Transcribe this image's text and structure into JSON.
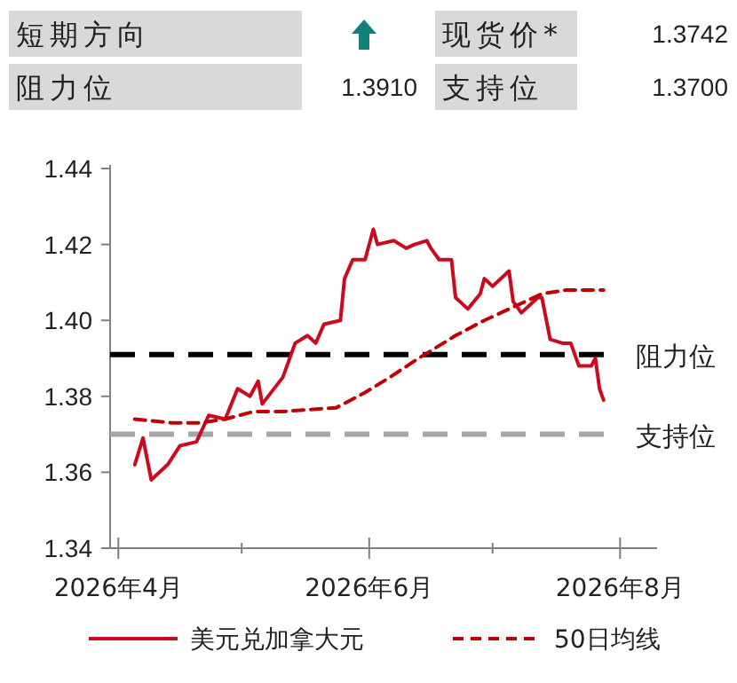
{
  "chart_data": [
    {
      "type": "other",
      "annotations": [
        "短期方向",
        "现货价*",
        "1.3742",
        "阻力位",
        "1.3910",
        "支持位",
        "1.3700"
      ]
    },
    {
      "type": "line",
      "legend": "bottom",
      "grid": false,
      "marker": "none",
      "xlim": [
        "2026-03-30",
        "2026-08-10"
      ],
      "ylim": [
        1.34,
        1.44
      ],
      "xticks": [
        {
          "value": "2026-04",
          "label": "2026年4月"
        },
        {
          "value": "2026-05",
          "label": null
        },
        {
          "value": "2026-06",
          "label": "2026年6月"
        },
        {
          "value": "2026-07",
          "label": null
        },
        {
          "value": "2026-08",
          "label": "2026年8月"
        }
      ],
      "yticks": [
        1.34,
        1.36,
        1.38,
        {
          "value": 1.4,
          "label": "1.40"
        },
        1.42,
        1.44
      ],
      "ref_lines": [
        {
          "axis": "y",
          "value": 1.391,
          "label": "阻力位",
          "color": "#000000",
          "line_style": "dashed"
        },
        {
          "axis": "y",
          "value": 1.37,
          "label": "支持位",
          "color": "#a6a6a6",
          "line_style": "dashed"
        }
      ],
      "series": [
        {
          "name": "美元兑加拿大元",
          "color": "#cc0a1e",
          "line_style": "solid",
          "x": [
            "2026-04-05",
            "2026-04-07",
            "2026-04-09",
            "2026-04-13",
            "2026-04-16",
            "2026-04-20",
            "2026-04-23",
            "2026-04-27",
            "2026-04-30",
            "2026-05-03",
            "2026-05-05",
            "2026-05-06",
            "2026-05-11",
            "2026-05-14",
            "2026-05-17",
            "2026-05-19",
            "2026-05-21",
            "2026-05-25",
            "2026-05-26",
            "2026-05-28",
            "2026-05-31",
            "2026-06-02",
            "2026-06-03",
            "2026-06-07",
            "2026-06-10",
            "2026-06-12",
            "2026-06-15",
            "2026-06-16",
            "2026-06-18",
            "2026-06-21",
            "2026-06-22",
            "2026-06-25",
            "2026-06-28",
            "2026-06-29",
            "2026-07-01",
            "2026-07-05",
            "2026-07-06",
            "2026-07-08",
            "2026-07-12",
            "2026-07-13",
            "2026-07-15",
            "2026-07-18",
            "2026-07-20",
            "2026-07-22",
            "2026-07-25",
            "2026-07-26",
            "2026-07-27",
            "2026-07-28"
          ],
          "values": [
            1.362,
            1.369,
            1.358,
            1.362,
            1.367,
            1.368,
            1.375,
            1.374,
            1.382,
            1.38,
            1.384,
            1.378,
            1.385,
            1.394,
            1.396,
            1.394,
            1.399,
            1.4,
            1.411,
            1.416,
            1.416,
            1.424,
            1.42,
            1.421,
            1.419,
            1.42,
            1.421,
            1.419,
            1.416,
            1.416,
            1.406,
            1.403,
            1.407,
            1.411,
            1.409,
            1.413,
            1.405,
            1.402,
            1.406,
            1.406,
            1.395,
            1.394,
            1.394,
            1.388,
            1.388,
            1.39,
            1.382,
            1.379
          ]
        },
        {
          "name": "50日均线",
          "color": "#c00000",
          "line_style": "dashed",
          "x": [
            "2026-04-05",
            "2026-04-14",
            "2026-04-21",
            "2026-04-27",
            "2026-05-04",
            "2026-05-11",
            "2026-05-24",
            "2026-05-31",
            "2026-06-06",
            "2026-06-13",
            "2026-06-22",
            "2026-06-29",
            "2026-07-07",
            "2026-07-13",
            "2026-07-19",
            "2026-07-28"
          ],
          "values": [
            1.374,
            1.373,
            1.373,
            1.374,
            1.376,
            1.376,
            1.377,
            1.381,
            1.385,
            1.39,
            1.396,
            1.4,
            1.404,
            1.407,
            1.408,
            1.408
          ]
        }
      ]
    }
  ]
}
